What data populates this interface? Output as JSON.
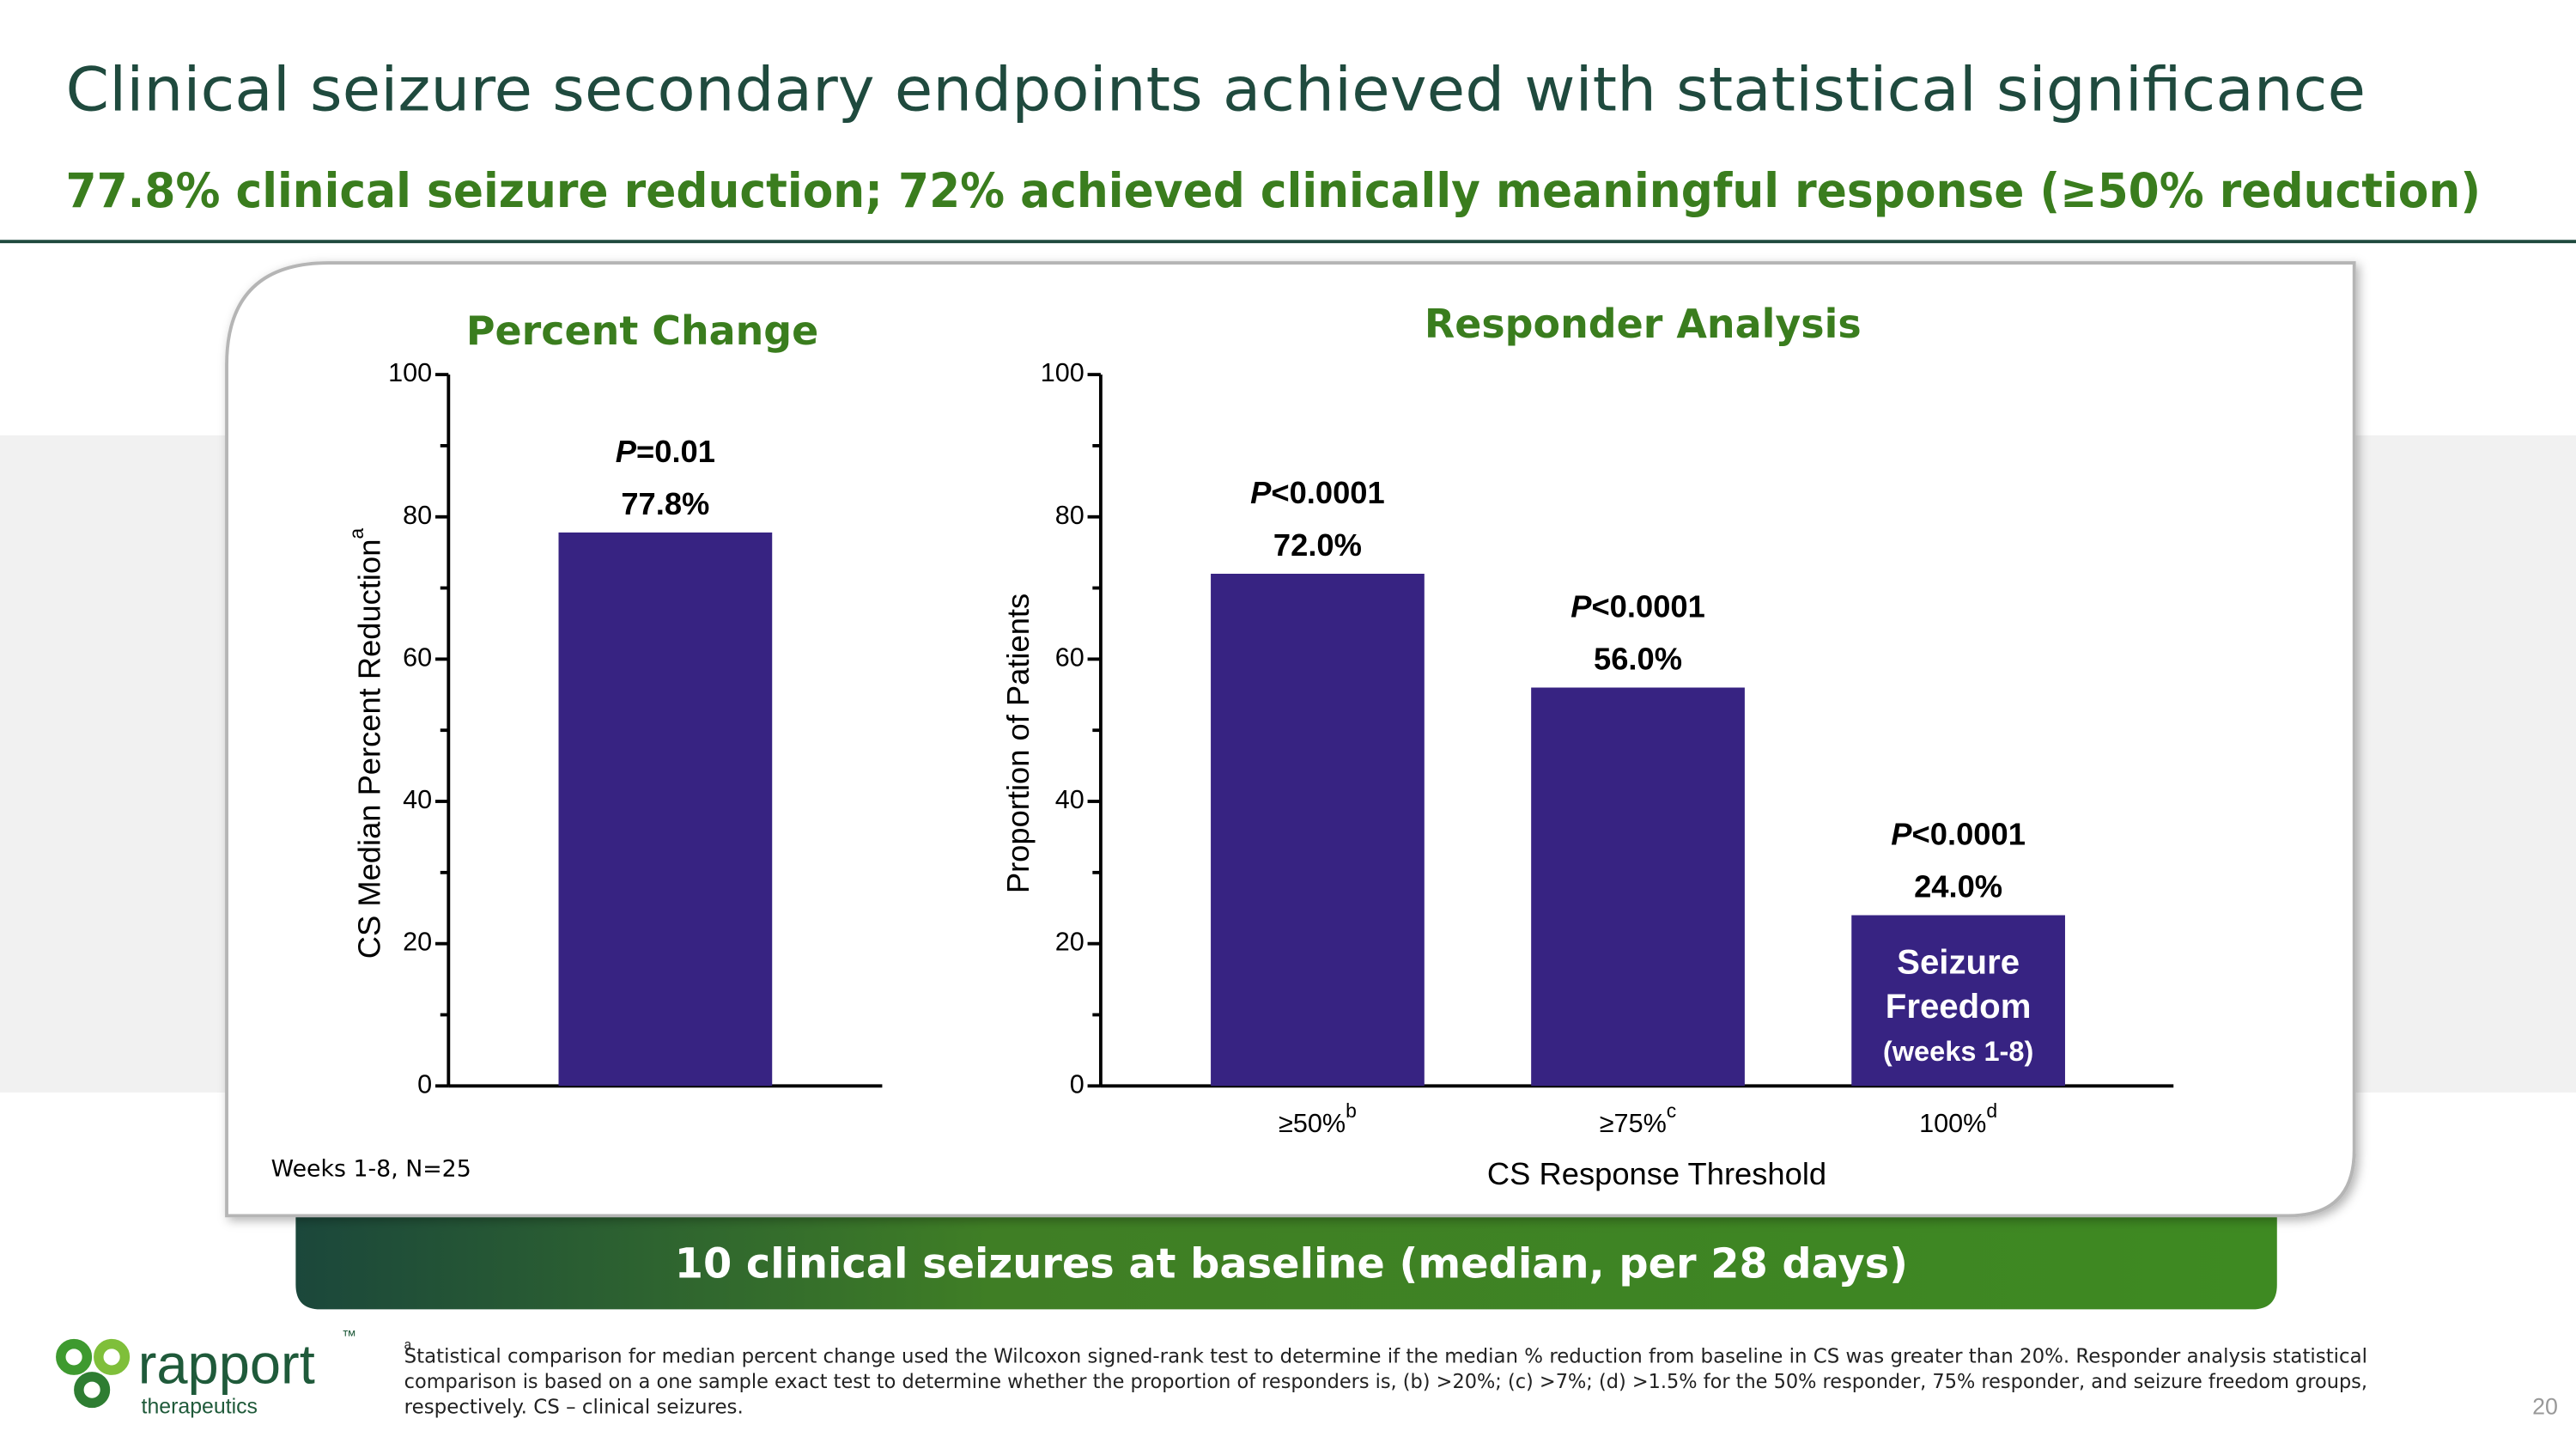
{
  "header": {
    "title": "Clinical seizure secondary endpoints achieved with statistical significance",
    "subtitle": "77.8% clinical seizure reduction; 72% achieved clinically meaningful response (≥50% reduction)"
  },
  "chart_data": [
    {
      "type": "bar",
      "title": "Percent Change",
      "y_label": "CS Median Percent Reduction",
      "y_label_note": "a",
      "categories": [
        null
      ],
      "values": [
        77.8
      ],
      "value_labels": [
        "77.8%"
      ],
      "p_labels": [
        "P=0.01"
      ],
      "color": "#372382",
      "ylim": [
        0,
        100
      ],
      "yticks": [
        0,
        20,
        40,
        60,
        80,
        100
      ],
      "yminorticks": [
        10,
        30,
        50,
        70,
        90
      ],
      "note": "Weeks 1-8, N=25"
    },
    {
      "type": "bar",
      "title": "Responder Analysis",
      "y_label": "Proportion of Patients",
      "x_label": "CS Response Threshold",
      "categories": [
        "≥50%",
        "≥75%",
        "100%"
      ],
      "category_notes": [
        "b",
        "c",
        "d"
      ],
      "values": [
        72.0,
        56.0,
        24.0
      ],
      "value_labels": [
        "72.0%",
        "56.0%",
        "24.0%"
      ],
      "p_labels": [
        "P<0.0001",
        "P<0.0001",
        "P<0.0001"
      ],
      "bar_text": [
        null,
        null,
        [
          "Seizure",
          "Freedom",
          "(weeks 1-8)"
        ]
      ],
      "color": "#372382",
      "ylim": [
        0,
        100
      ],
      "yticks": [
        0,
        20,
        40,
        60,
        80,
        100
      ],
      "yminorticks": [
        10,
        30,
        50,
        70,
        90
      ]
    }
  ],
  "banner": "10 clinical seizures at baseline (median, per 28 days)",
  "footnote": {
    "mark": "a",
    "lines": [
      "Statistical comparison for median percent change used the Wilcoxon signed-rank test to determine if the median % reduction from baseline  in CS was greater than 20%. Responder analysis statistical",
      "comparison is based on a one sample exact test to determine whether the proportion of responders is, (b) >20%; (c) >7%; (d) >1.5% for the 50% responder, 75% responder, and seizure freedom groups,",
      "respectively. CS – clinical seizures."
    ]
  },
  "logo": {
    "name": "rapport",
    "tm": "™",
    "tagline": "therapeutics"
  },
  "page_number": "20"
}
